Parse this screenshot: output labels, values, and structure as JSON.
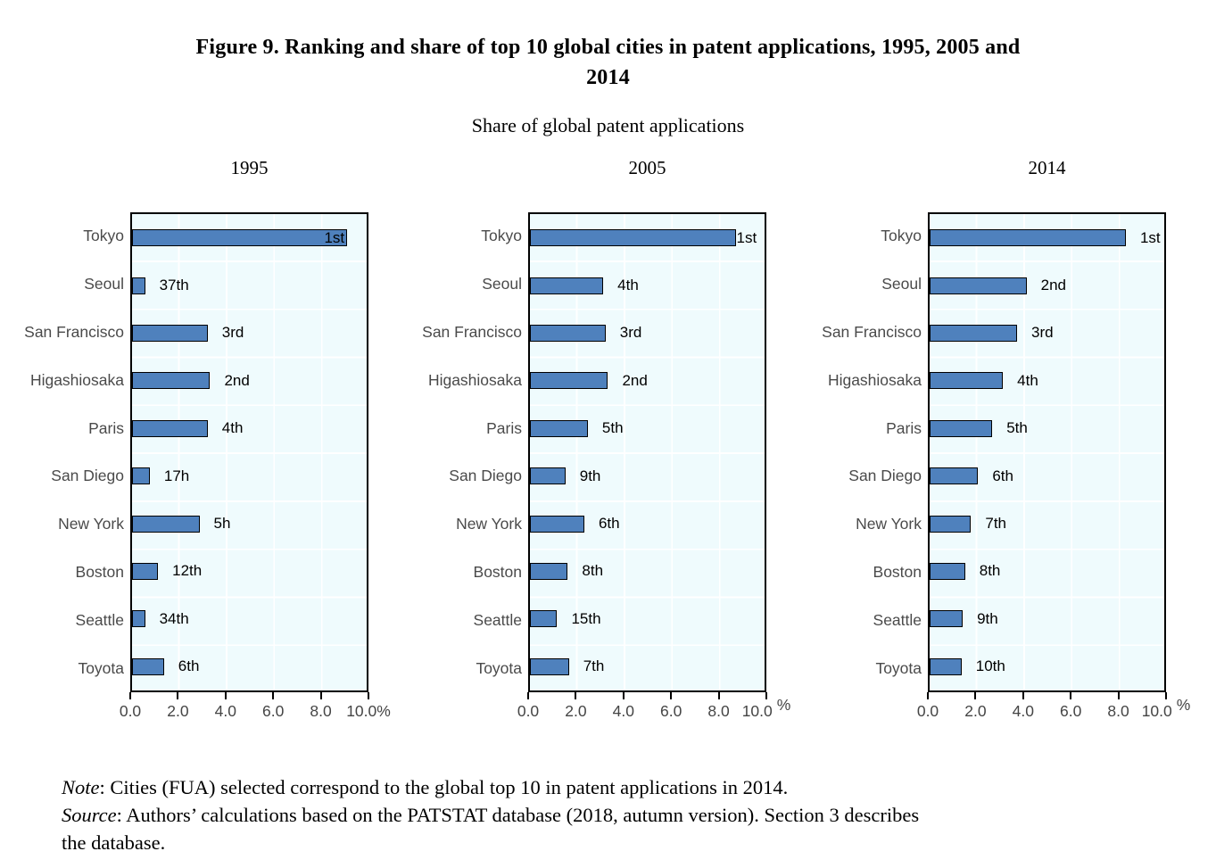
{
  "figure": {
    "title_line1": "Figure 9. Ranking and share of top 10 global cities in patent applications, 1995, 2005 and",
    "title_line2": "2014",
    "subtitle": "Share of global patent applications",
    "note_label": "Note",
    "note_text": ": Cities (FUA) selected correspond to the global top 10 in patent applications in 2014.",
    "source_label": "Source",
    "source_text": ": Authors’ calculations based on the PATSTAT database (2018, autumn version). Section 3 describes",
    "source_text_line2": "the database."
  },
  "colors": {
    "bar_fill": "#4F81BD",
    "bar_border": "#000000",
    "plot_background": "#EFFBFD",
    "gridline": "#FFFFFF",
    "axis_text": "#454545",
    "city_text": "#4a4a4a",
    "rank_text": "#000000"
  },
  "chart_data": {
    "type": "bar",
    "orientation": "horizontal",
    "title": "Share of global patent applications",
    "xlabel": "Share of global patent applications (%)",
    "xlim": [
      0,
      10
    ],
    "x_ticks": [
      "0.0",
      "2.0",
      "4.0",
      "6.0",
      "8.0",
      "10.0"
    ],
    "x_unit": "%",
    "grid": "on",
    "categories": [
      "Tokyo",
      "Seoul",
      "San Francisco",
      "Higashiosaka",
      "Paris",
      "San Diego",
      "New York",
      "Boston",
      "Seattle",
      "Toyota"
    ],
    "panels": [
      {
        "year": "1995",
        "values": [
          9.1,
          0.55,
          3.2,
          3.3,
          3.2,
          0.75,
          2.85,
          1.1,
          0.55,
          1.35
        ],
        "ranks": [
          "1st",
          "37th",
          "3rd",
          "2nd",
          "4th",
          "17h",
          "5h",
          "12th",
          "34th",
          "6th"
        ],
        "rank_placement": [
          "inside",
          "out",
          "out",
          "out",
          "out",
          "out",
          "out",
          "out",
          "out",
          "out"
        ],
        "unit_superscript": false
      },
      {
        "year": "2005",
        "values": [
          8.7,
          3.1,
          3.2,
          3.3,
          2.45,
          1.5,
          2.3,
          1.6,
          1.15,
          1.65
        ],
        "ranks": [
          "1st",
          "4th",
          "3rd",
          "2nd",
          "5th",
          "9th",
          "6th",
          "8th",
          "15th",
          "7th"
        ],
        "rank_placement": [
          "edge",
          "out",
          "out",
          "out",
          "out",
          "out",
          "out",
          "out",
          "out",
          "out"
        ],
        "unit_superscript": true
      },
      {
        "year": "2014",
        "values": [
          8.3,
          4.1,
          3.7,
          3.1,
          2.65,
          2.05,
          1.75,
          1.5,
          1.4,
          1.35
        ],
        "ranks": [
          "1st",
          "2nd",
          "3rd",
          "4th",
          "5th",
          "6th",
          "7th",
          "8th",
          "9th",
          "10th"
        ],
        "rank_placement": [
          "out",
          "out",
          "out",
          "out",
          "out",
          "out",
          "out",
          "out",
          "out",
          "out"
        ],
        "unit_superscript": true
      }
    ]
  }
}
